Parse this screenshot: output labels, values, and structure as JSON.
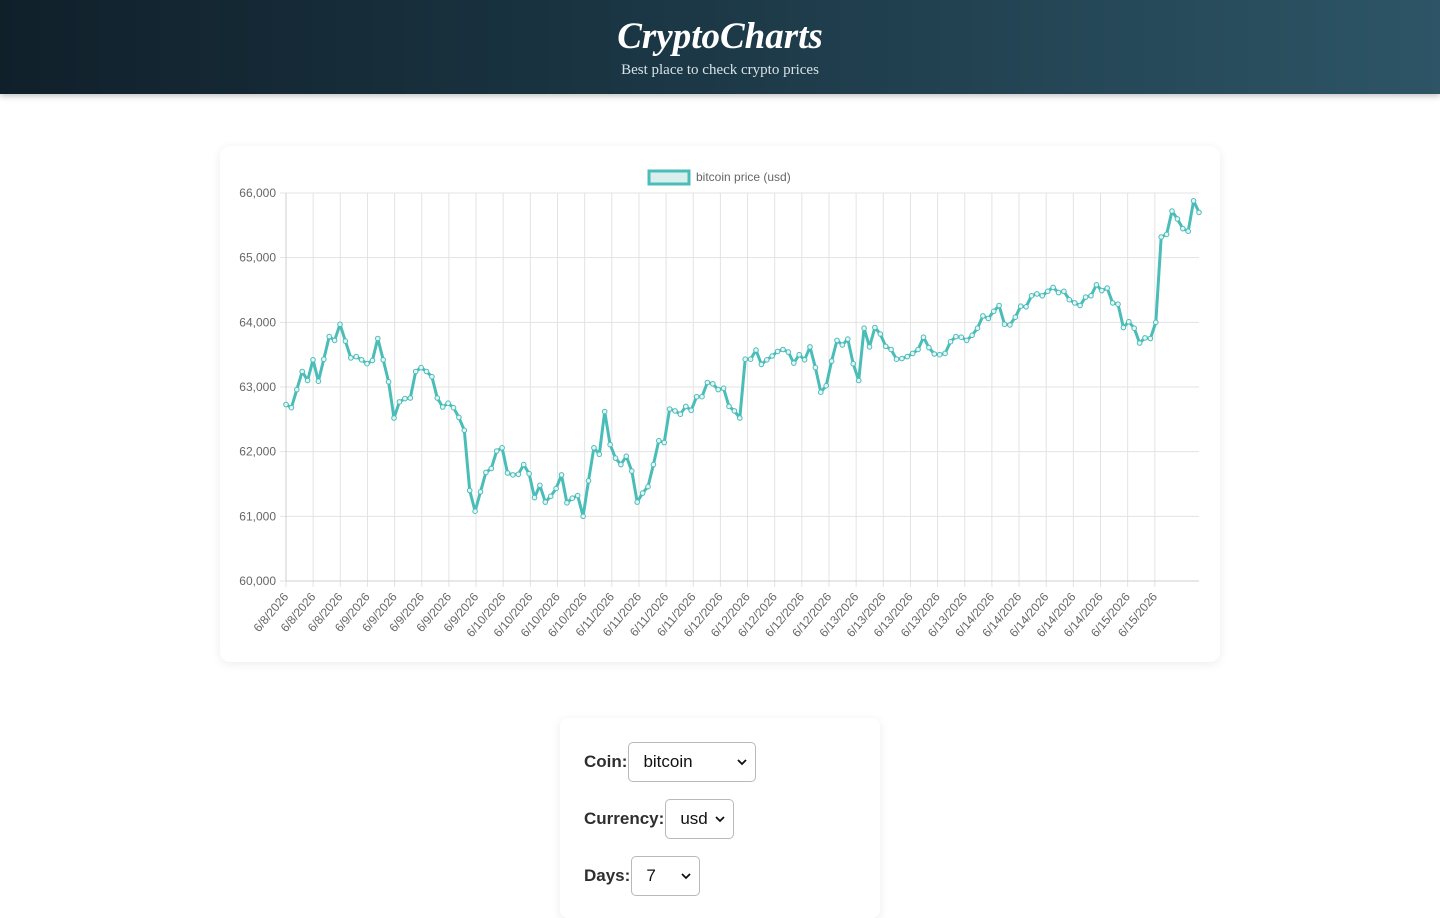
{
  "header": {
    "title": "CryptoCharts",
    "subtitle": "Best place to check crypto prices"
  },
  "colors": {
    "header_start": "#10202b",
    "header_end": "#2d5566",
    "line": "#4bbdb8",
    "legend_fill": "#d9efee",
    "grid": "#e3e3e3"
  },
  "chart_data": {
    "type": "line",
    "legend_position": "top-center",
    "grid": true,
    "series": [
      {
        "name": "bitcoin price (usd)",
        "values": [
          62730,
          62680,
          62960,
          63240,
          63100,
          63420,
          63090,
          63430,
          63780,
          63720,
          63970,
          63710,
          63450,
          63470,
          63420,
          63360,
          63410,
          63750,
          63420,
          63080,
          62520,
          62770,
          62820,
          62830,
          63240,
          63300,
          63240,
          63160,
          62830,
          62690,
          62750,
          62680,
          62530,
          62330,
          61400,
          61080,
          61380,
          61680,
          61740,
          62010,
          62060,
          61670,
          61640,
          61650,
          61800,
          61660,
          61290,
          61480,
          61220,
          61310,
          61430,
          61640,
          61210,
          61280,
          61320,
          61000,
          61550,
          62060,
          61960,
          62620,
          62110,
          61900,
          61800,
          61930,
          61700,
          61220,
          61360,
          61460,
          61800,
          62170,
          62140,
          62660,
          62630,
          62580,
          62700,
          62640,
          62850,
          62850,
          63070,
          63050,
          62960,
          62980,
          62700,
          62630,
          62520,
          63430,
          63430,
          63570,
          63350,
          63420,
          63480,
          63550,
          63580,
          63540,
          63370,
          63500,
          63420,
          63620,
          63300,
          62920,
          63020,
          63400,
          63720,
          63650,
          63740,
          63360,
          63100,
          63910,
          63620,
          63920,
          63820,
          63630,
          63580,
          63430,
          63440,
          63470,
          63520,
          63580,
          63770,
          63610,
          63510,
          63500,
          63520,
          63700,
          63780,
          63770,
          63720,
          63800,
          63910,
          64100,
          64060,
          64170,
          64260,
          63970,
          63960,
          64080,
          64250,
          64240,
          64410,
          64440,
          64410,
          64480,
          64540,
          64460,
          64480,
          64350,
          64300,
          64260,
          64390,
          64410,
          64580,
          64490,
          64530,
          64300,
          64280,
          63920,
          64010,
          63910,
          63680,
          63760,
          63750,
          64000,
          65320,
          65360,
          65720,
          65600,
          65450,
          65410,
          65880,
          65700
        ]
      }
    ],
    "x_tick_labels": [
      "6/8/2026",
      "6/8/2026",
      "6/8/2026",
      "6/9/2026",
      "6/9/2026",
      "6/9/2026",
      "6/9/2026",
      "6/9/2026",
      "6/10/2026",
      "6/10/2026",
      "6/10/2026",
      "6/10/2026",
      "6/11/2026",
      "6/11/2026",
      "6/11/2026",
      "6/11/2026",
      "6/12/2026",
      "6/12/2026",
      "6/12/2026",
      "6/12/2026",
      "6/12/2026",
      "6/13/2026",
      "6/13/2026",
      "6/13/2026",
      "6/13/2026",
      "6/13/2026",
      "6/14/2026",
      "6/14/2026",
      "6/14/2026",
      "6/14/2026",
      "6/14/2026",
      "6/15/2026",
      "6/15/2026"
    ],
    "y_tick_labels": [
      "66,000",
      "65,000",
      "64,000",
      "63,000",
      "62,000",
      "61,000",
      "60,000"
    ],
    "ylim": [
      60000,
      66000
    ]
  },
  "controls": {
    "coin_label": "Coin:",
    "coin_value": "bitcoin",
    "currency_label": "Currency:",
    "currency_value": "usd",
    "days_label": "Days:",
    "days_value": "7"
  }
}
